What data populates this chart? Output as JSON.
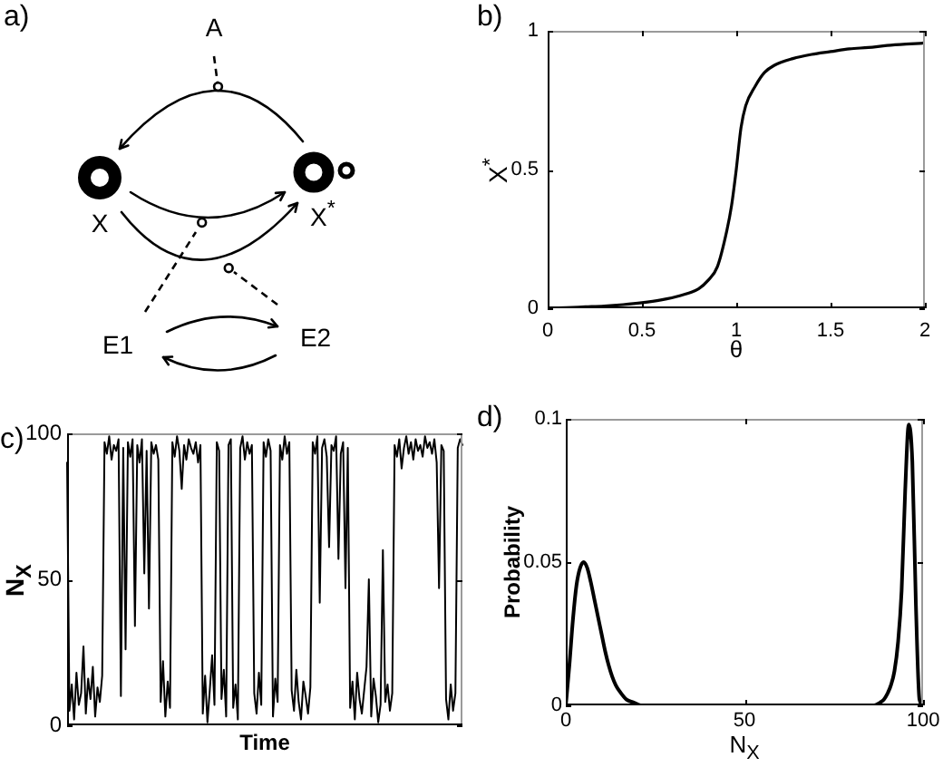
{
  "chart_data": [
    {
      "type": "other",
      "title": "a)",
      "annotations": [
        "A",
        "X",
        "X$^{*}$",
        "E1",
        "E2"
      ]
    },
    {
      "type": "line",
      "title": "b)",
      "xlabel": "θ",
      "ylabel": "X$^{*}$",
      "x": [
        0,
        0.1,
        0.2,
        0.3,
        0.4,
        0.5,
        0.6,
        0.7,
        0.8,
        0.85,
        0.9,
        0.95,
        0.975,
        1,
        1.025,
        1.05,
        1.1,
        1.15,
        1.2,
        1.3,
        1.4,
        1.5,
        1.6,
        1.7,
        1.8,
        1.9,
        2
      ],
      "series": [
        {
          "color": "#000000",
          "values": [
            0,
            0.002,
            0.005,
            0.008,
            0.013,
            0.02,
            0.03,
            0.045,
            0.07,
            0.1,
            0.15,
            0.28,
            0.37,
            0.5,
            0.65,
            0.73,
            0.8,
            0.85,
            0.875,
            0.9,
            0.915,
            0.925,
            0.935,
            0.94,
            0.947,
            0.952,
            0.956
          ]
        }
      ],
      "xlim": [
        0,
        2
      ],
      "xticks": [
        0,
        0.5,
        1,
        1.5,
        2
      ],
      "ylim": [
        0,
        1
      ],
      "yticks": [
        0,
        0.5,
        1
      ]
    },
    {
      "type": "line",
      "title": "c)",
      "xlabel": "Time",
      "ylabel": "N$_{X}$",
      "categories": [
        null,
        null,
        null,
        null,
        null,
        null,
        null,
        null,
        null,
        null,
        null,
        null,
        null,
        null,
        null,
        null,
        null,
        null,
        null,
        null,
        null,
        null,
        null,
        null,
        null,
        null,
        null,
        null,
        null,
        null,
        null,
        null,
        null,
        null,
        null,
        null,
        null,
        null,
        null,
        null,
        null,
        null,
        null,
        null,
        null,
        null,
        null,
        null,
        null,
        null,
        null,
        null,
        null,
        null,
        null,
        null,
        null,
        null,
        null,
        null,
        null,
        null,
        null,
        null,
        null,
        null,
        null,
        null,
        null,
        null,
        null,
        null,
        null,
        null,
        null,
        null,
        null,
        null,
        null,
        null,
        null,
        null,
        null,
        null,
        null,
        null,
        null,
        null,
        null,
        null,
        null,
        null,
        null,
        null,
        null,
        null,
        null,
        null,
        null,
        null,
        null,
        null,
        null,
        null,
        null,
        null,
        null,
        null,
        null,
        null,
        null,
        null,
        null,
        null,
        null,
        null,
        null,
        null,
        null,
        null,
        null,
        null,
        null,
        null,
        null,
        null,
        null,
        null,
        null,
        null,
        null,
        null,
        null,
        null,
        null,
        null,
        null,
        null,
        null,
        null,
        null,
        null,
        null,
        null,
        null,
        null,
        null,
        null,
        null,
        null,
        null,
        null,
        null,
        null,
        null,
        null,
        null,
        null,
        null,
        null,
        null,
        null,
        null,
        null,
        null,
        null,
        null,
        null,
        null,
        null
      ],
      "series": [
        {
          "color": "#000000",
          "values": [
            90,
            5,
            14,
            2,
            18,
            7,
            11,
            27,
            4,
            16,
            9,
            20,
            3,
            13,
            8,
            17,
            97,
            93,
            99,
            91,
            96,
            94,
            98,
            10,
            95,
            26,
            97,
            92,
            98,
            34,
            96,
            90,
            98,
            52,
            94,
            40,
            97,
            93,
            96,
            91,
            8,
            22,
            3,
            15,
            6,
            97,
            92,
            99,
            94,
            81,
            96,
            91,
            98,
            95,
            93,
            97,
            90,
            96,
            4,
            17,
            1,
            12,
            24,
            7,
            97,
            94,
            9,
            19,
            3,
            96,
            98,
            6,
            14,
            2,
            95,
            99,
            91,
            97,
            93,
            96,
            11,
            4,
            18,
            7,
            97,
            92,
            98,
            94,
            3,
            16,
            8,
            96,
            91,
            99,
            93,
            97,
            12,
            5,
            19,
            8,
            2,
            15,
            10,
            4,
            13,
            97,
            93,
            99,
            42,
            95,
            98,
            92,
            61,
            96,
            94,
            99,
            57,
            93,
            97,
            47,
            95,
            6,
            15,
            2,
            18,
            9,
            4,
            12,
            20,
            50,
            3,
            16,
            10,
            1,
            7,
            60,
            8,
            14,
            5,
            11,
            96,
            92,
            98,
            88,
            95,
            99,
            93,
            97,
            91,
            98,
            94,
            96,
            92,
            99,
            95,
            97,
            93,
            98,
            90,
            47,
            96,
            94,
            9,
            2,
            14,
            5,
            11,
            95,
            98,
            96
          ]
        }
      ],
      "ylim": [
        0,
        100
      ],
      "yticks": [
        0,
        50,
        100
      ],
      "tick_labels": "y"
    },
    {
      "type": "line",
      "title": "d)",
      "xlabel": "N$_{X}$",
      "ylabel": "Probability",
      "x": [
        0,
        1,
        2,
        3,
        4,
        5,
        6,
        7,
        8,
        9,
        10,
        11,
        12,
        13,
        14,
        15,
        17,
        19,
        21,
        25,
        30,
        40,
        50,
        60,
        70,
        80,
        86,
        88,
        89,
        90,
        91,
        92,
        93,
        94,
        95,
        96,
        97,
        98,
        99,
        100
      ],
      "series": [
        {
          "color": "#000000",
          "values": [
            0,
            0.014,
            0.03,
            0.042,
            0.048,
            0.05,
            0.048,
            0.043,
            0.037,
            0.031,
            0.025,
            0.019,
            0.014,
            0.01,
            0.007,
            0.005,
            0.002,
            0.001,
            0,
            0,
            0,
            0,
            0,
            0,
            0,
            0,
            0,
            0.001,
            0.002,
            0.004,
            0.007,
            0.012,
            0.022,
            0.04,
            0.075,
            0.098,
            0.085,
            0.035,
            0.002,
            0
          ]
        }
      ],
      "xlim": [
        0,
        100
      ],
      "xticks": [
        0,
        50,
        100
      ],
      "ylim": [
        0,
        0.1
      ],
      "yticks": [
        0,
        0.05,
        0.1
      ]
    }
  ]
}
